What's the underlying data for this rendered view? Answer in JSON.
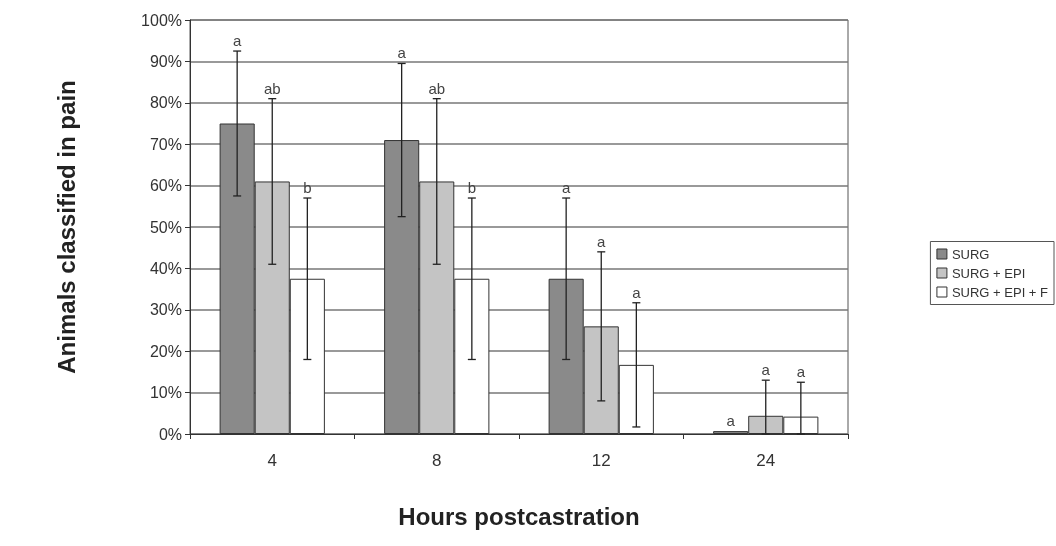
{
  "chart_data": {
    "type": "bar",
    "xlabel": "Hours postcastration",
    "ylabel": "Animals classified in pain",
    "categories": [
      "4",
      "8",
      "12",
      "24"
    ],
    "series": [
      {
        "name": "SURG",
        "color": "#8a8a8a",
        "values": [
          75,
          71,
          37.5,
          0.7
        ],
        "errors": [
          17.5,
          18.5,
          19.5,
          null
        ]
      },
      {
        "name": "SURG + EPI",
        "color": "#c4c4c4",
        "values": [
          61,
          61,
          26,
          4.4
        ],
        "errors": [
          20,
          20,
          18,
          [
            0,
            13
          ]
        ]
      },
      {
        "name": "SURG + EPI + F",
        "color": "#ffffff",
        "values": [
          37.5,
          37.5,
          16.7,
          4.2
        ],
        "errors": [
          19.5,
          19.5,
          15,
          [
            0,
            12.5
          ]
        ]
      }
    ],
    "annotations": [
      "a",
      "ab",
      "b",
      "a",
      "ab",
      "b",
      "a",
      "a",
      "a",
      "a",
      "a",
      "a"
    ],
    "ylim": [
      0,
      100
    ],
    "yticks": [
      {
        "value": 0,
        "label": "0%"
      },
      {
        "value": 10,
        "label": "10%"
      },
      {
        "value": 20,
        "label": "20%"
      },
      {
        "value": 30,
        "label": "30%"
      },
      {
        "value": 40,
        "label": "40%"
      },
      {
        "value": 50,
        "label": "50%"
      },
      {
        "value": 60,
        "label": "60%"
      },
      {
        "value": 70,
        "label": "70%"
      },
      {
        "value": 80,
        "label": "80%"
      },
      {
        "value": 90,
        "label": "90%"
      },
      {
        "value": 100,
        "label": "100%"
      }
    ],
    "grid": "y",
    "legend": "right"
  }
}
